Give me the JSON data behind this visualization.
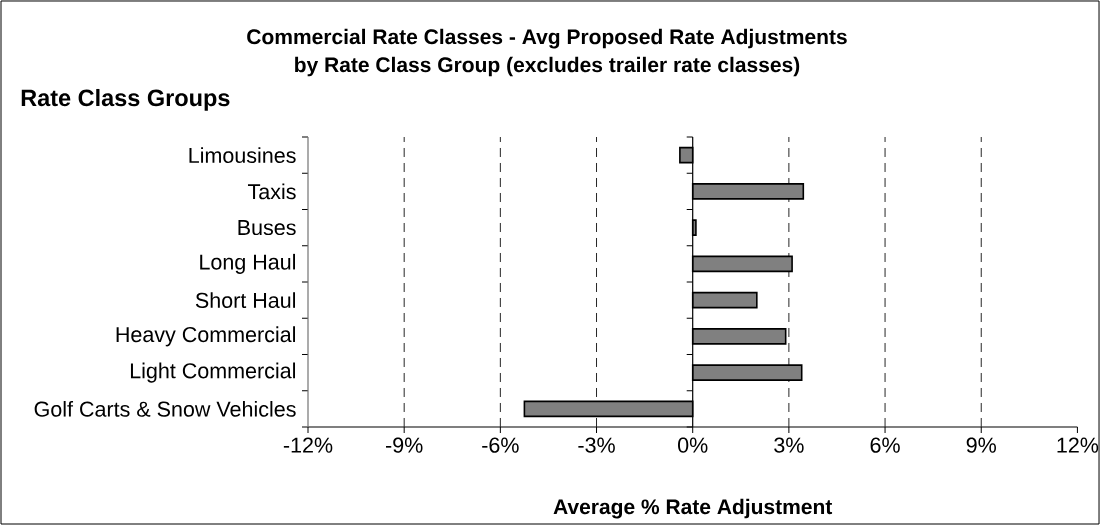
{
  "chart_data": {
    "type": "bar",
    "orientation": "horizontal",
    "title": "Commercial Rate Classes - Avg Proposed Rate Adjustments",
    "subtitle": "by Rate Class Group (excludes trailer rate classes)",
    "xlabel": "Average % Rate Adjustment",
    "ylabel": "Rate Class Groups",
    "categories": [
      "Limousines",
      "Taxis",
      "Buses",
      "Long Haul",
      "Short Haul",
      "Heavy Commercial",
      "Light Commercial",
      "Golf Carts & Snow Vehicles"
    ],
    "values": [
      -0.4,
      3.45,
      0.1,
      3.1,
      2.0,
      2.9,
      3.4,
      -5.25
    ],
    "color": "#808080",
    "xlim": [
      -12,
      12
    ],
    "xticks": [
      {
        "value": -12,
        "label": "-12%"
      },
      {
        "value": -9,
        "label": "-9%"
      },
      {
        "value": -6,
        "label": "-6%"
      },
      {
        "value": -3,
        "label": "-3%"
      },
      {
        "value": 0,
        "label": "0%"
      },
      {
        "value": 3,
        "label": "3%"
      },
      {
        "value": 6,
        "label": "6%"
      },
      {
        "value": 9,
        "label": "9%"
      },
      {
        "value": 12,
        "label": "12%"
      }
    ],
    "grid": "x"
  }
}
